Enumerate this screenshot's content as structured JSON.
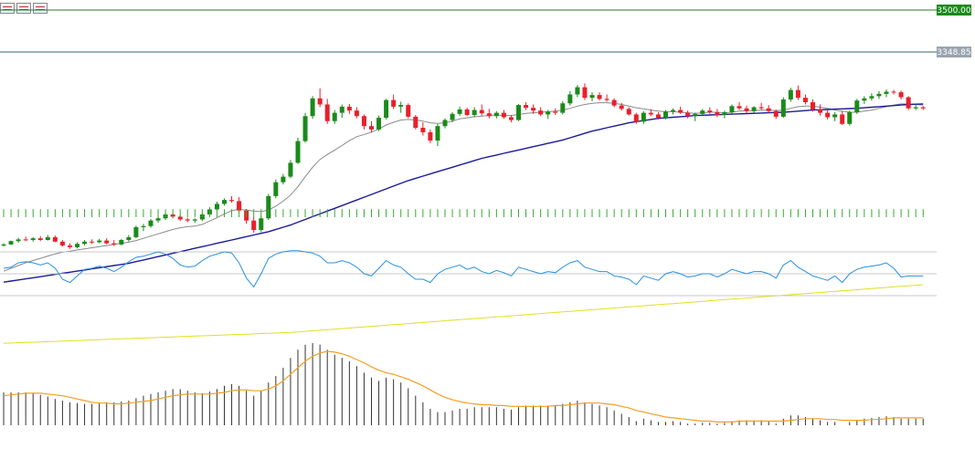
{
  "toolbar": {
    "icons": [
      "chart-window-icon",
      "chart-window-icon",
      "chart-window-icon"
    ]
  },
  "chart_data": {
    "type": "candlestick",
    "price_labels": {
      "top": "3500.00",
      "current": "3348.85"
    },
    "levels": {
      "top": 3500.0,
      "current": 3348.85
    },
    "colors": {
      "up": "#1a8a1a",
      "down": "#e8202a",
      "sma_short": "#8a8a8a",
      "sma_mid": "#1a1a9a",
      "sma_long": "#e0e020",
      "volume": "#33aa33",
      "rsi": "#2a90e0",
      "macd_hist": "#333333",
      "macd_signal": "#f0a020",
      "level_line": "#2a7a2a",
      "current_line": "#3a6a6a"
    },
    "candles": [
      [
        2652,
        2660,
        2648,
        2656
      ],
      [
        2656,
        2670,
        2654,
        2668
      ],
      [
        2668,
        2680,
        2662,
        2674
      ],
      [
        2674,
        2684,
        2668,
        2672
      ],
      [
        2672,
        2682,
        2666,
        2678
      ],
      [
        2678,
        2686,
        2668,
        2672
      ],
      [
        2672,
        2690,
        2670,
        2682
      ],
      [
        2682,
        2688,
        2664,
        2666
      ],
      [
        2666,
        2672,
        2648,
        2652
      ],
      [
        2652,
        2660,
        2640,
        2646
      ],
      [
        2646,
        2664,
        2642,
        2658
      ],
      [
        2658,
        2672,
        2652,
        2666
      ],
      [
        2666,
        2674,
        2658,
        2664
      ],
      [
        2664,
        2676,
        2660,
        2670
      ],
      [
        2670,
        2678,
        2656,
        2660
      ],
      [
        2660,
        2672,
        2650,
        2656
      ],
      [
        2656,
        2676,
        2652,
        2672
      ],
      [
        2672,
        2690,
        2666,
        2682
      ],
      [
        2682,
        2724,
        2678,
        2718
      ],
      [
        2718,
        2730,
        2704,
        2722
      ],
      [
        2722,
        2748,
        2716,
        2742
      ],
      [
        2742,
        2756,
        2734,
        2750
      ],
      [
        2750,
        2772,
        2744,
        2764
      ],
      [
        2764,
        2770,
        2750,
        2756
      ],
      [
        2756,
        2764,
        2740,
        2746
      ],
      [
        2746,
        2752,
        2736,
        2742
      ],
      [
        2742,
        2750,
        2734,
        2746
      ],
      [
        2746,
        2770,
        2740,
        2764
      ],
      [
        2764,
        2790,
        2758,
        2782
      ],
      [
        2782,
        2810,
        2776,
        2802
      ],
      [
        2802,
        2822,
        2796,
        2816
      ],
      [
        2816,
        2830,
        2806,
        2812
      ],
      [
        2812,
        2826,
        2772,
        2778
      ],
      [
        2778,
        2784,
        2730,
        2742
      ],
      [
        2742,
        2756,
        2698,
        2708
      ],
      [
        2708,
        2760,
        2700,
        2750
      ],
      [
        2750,
        2838,
        2744,
        2830
      ],
      [
        2830,
        2890,
        2822,
        2880
      ],
      [
        2880,
        2910,
        2872,
        2900
      ],
      [
        2900,
        2960,
        2894,
        2950
      ],
      [
        2950,
        3040,
        2946,
        3028
      ],
      [
        3028,
        3130,
        3022,
        3118
      ],
      [
        3118,
        3190,
        3108,
        3182
      ],
      [
        3182,
        3218,
        3150,
        3160
      ],
      [
        3160,
        3180,
        3090,
        3100
      ],
      [
        3100,
        3140,
        3090,
        3130
      ],
      [
        3130,
        3160,
        3112,
        3152
      ],
      [
        3152,
        3162,
        3126,
        3138
      ],
      [
        3138,
        3150,
        3110,
        3118
      ],
      [
        3118,
        3124,
        3070,
        3082
      ],
      [
        3082,
        3100,
        3060,
        3070
      ],
      [
        3070,
        3120,
        3064,
        3112
      ],
      [
        3112,
        3180,
        3106,
        3176
      ],
      [
        3176,
        3196,
        3144,
        3152
      ],
      [
        3152,
        3170,
        3130,
        3158
      ],
      [
        3158,
        3164,
        3110,
        3116
      ],
      [
        3116,
        3122,
        3070,
        3076
      ],
      [
        3076,
        3096,
        3048,
        3060
      ],
      [
        3060,
        3070,
        3020,
        3030
      ],
      [
        3030,
        3090,
        3010,
        3082
      ],
      [
        3082,
        3110,
        3074,
        3104
      ],
      [
        3104,
        3132,
        3096,
        3126
      ],
      [
        3126,
        3152,
        3118,
        3142
      ],
      [
        3142,
        3148,
        3118,
        3122
      ],
      [
        3122,
        3150,
        3114,
        3140
      ],
      [
        3140,
        3160,
        3120,
        3128
      ],
      [
        3128,
        3144,
        3110,
        3118
      ],
      [
        3118,
        3136,
        3110,
        3130
      ],
      [
        3130,
        3140,
        3108,
        3114
      ],
      [
        3114,
        3122,
        3096,
        3104
      ],
      [
        3104,
        3162,
        3100,
        3158
      ],
      [
        3158,
        3168,
        3140,
        3148
      ],
      [
        3148,
        3160,
        3126,
        3138
      ],
      [
        3138,
        3150,
        3118,
        3124
      ],
      [
        3124,
        3140,
        3108,
        3134
      ],
      [
        3134,
        3146,
        3122,
        3130
      ],
      [
        3130,
        3172,
        3124,
        3164
      ],
      [
        3164,
        3208,
        3156,
        3196
      ],
      [
        3196,
        3230,
        3186,
        3222
      ],
      [
        3222,
        3236,
        3176,
        3184
      ],
      [
        3184,
        3204,
        3172,
        3194
      ],
      [
        3194,
        3204,
        3174,
        3180
      ],
      [
        3180,
        3196,
        3170,
        3176
      ],
      [
        3176,
        3182,
        3150,
        3156
      ],
      [
        3156,
        3166,
        3138,
        3144
      ],
      [
        3144,
        3150,
        3120,
        3124
      ],
      [
        3124,
        3130,
        3090,
        3098
      ],
      [
        3098,
        3136,
        3090,
        3130
      ],
      [
        3130,
        3142,
        3118,
        3124
      ],
      [
        3124,
        3132,
        3106,
        3112
      ],
      [
        3112,
        3140,
        3106,
        3134
      ],
      [
        3134,
        3146,
        3124,
        3140
      ],
      [
        3140,
        3152,
        3126,
        3130
      ],
      [
        3130,
        3138,
        3110,
        3118
      ],
      [
        3118,
        3130,
        3100,
        3126
      ],
      [
        3126,
        3144,
        3120,
        3138
      ],
      [
        3138,
        3150,
        3126,
        3132
      ],
      [
        3132,
        3144,
        3114,
        3122
      ],
      [
        3122,
        3138,
        3110,
        3132
      ],
      [
        3132,
        3160,
        3126,
        3154
      ],
      [
        3154,
        3168,
        3140,
        3146
      ],
      [
        3146,
        3156,
        3128,
        3136
      ],
      [
        3136,
        3154,
        3130,
        3150
      ],
      [
        3150,
        3166,
        3140,
        3146
      ],
      [
        3146,
        3158,
        3130,
        3136
      ],
      [
        3136,
        3142,
        3108,
        3116
      ],
      [
        3116,
        3186,
        3112,
        3178
      ],
      [
        3178,
        3220,
        3170,
        3212
      ],
      [
        3212,
        3228,
        3176,
        3184
      ],
      [
        3184,
        3196,
        3160,
        3168
      ],
      [
        3168,
        3178,
        3134,
        3142
      ],
      [
        3142,
        3160,
        3120,
        3130
      ],
      [
        3130,
        3140,
        3106,
        3114
      ],
      [
        3114,
        3132,
        3100,
        3124
      ],
      [
        3124,
        3136,
        3086,
        3090
      ],
      [
        3090,
        3138,
        3084,
        3132
      ],
      [
        3132,
        3180,
        3126,
        3174
      ],
      [
        3174,
        3190,
        3162,
        3182
      ],
      [
        3182,
        3200,
        3174,
        3190
      ],
      [
        3190,
        3208,
        3180,
        3198
      ],
      [
        3198,
        3214,
        3186,
        3206
      ],
      [
        3206,
        3212,
        3196,
        3204
      ],
      [
        3204,
        3210,
        3178,
        3186
      ],
      [
        3186,
        3190,
        3140,
        3146
      ],
      [
        3146,
        3160,
        3140,
        3150
      ],
      [
        3150,
        3154,
        3140,
        3146
      ]
    ],
    "sma_short": [
      2560,
      2570,
      2580,
      2590,
      2598,
      2606,
      2614,
      2622,
      2628,
      2632,
      2636,
      2640,
      2644,
      2648,
      2652,
      2656,
      2660,
      2664,
      2670,
      2678,
      2686,
      2694,
      2702,
      2710,
      2716,
      2720,
      2722,
      2728,
      2740,
      2752,
      2766,
      2778,
      2782,
      2780,
      2776,
      2774,
      2780,
      2794,
      2812,
      2834,
      2864,
      2900,
      2934,
      2962,
      2980,
      2996,
      3012,
      3030,
      3044,
      3052,
      3060,
      3072,
      3086,
      3096,
      3104,
      3106,
      3104,
      3100,
      3094,
      3092,
      3094,
      3100,
      3108,
      3112,
      3116,
      3118,
      3120,
      3122,
      3120,
      3120,
      3124,
      3128,
      3130,
      3132,
      3134,
      3136,
      3140,
      3146,
      3154,
      3160,
      3164,
      3166,
      3166,
      3164,
      3160,
      3154,
      3148,
      3144,
      3140,
      3136,
      3134,
      3134,
      3132,
      3130,
      3128,
      3130,
      3132,
      3132,
      3130,
      3132,
      3136,
      3138,
      3138,
      3140,
      3140,
      3138,
      3140,
      3146,
      3152,
      3154,
      3154,
      3150,
      3146,
      3140,
      3136,
      3132,
      3132,
      3136,
      3140,
      3146,
      3152,
      3158,
      3162,
      3162,
      3160,
      3158
    ],
    "sma_mid": [
      2520,
      2524,
      2528,
      2532,
      2536,
      2540,
      2544,
      2548,
      2552,
      2556,
      2560,
      2564,
      2568,
      2572,
      2576,
      2580,
      2584,
      2588,
      2594,
      2600,
      2606,
      2612,
      2618,
      2624,
      2630,
      2636,
      2642,
      2648,
      2654,
      2660,
      2666,
      2672,
      2678,
      2684,
      2690,
      2696,
      2702,
      2710,
      2718,
      2726,
      2736,
      2746,
      2756,
      2766,
      2776,
      2786,
      2796,
      2806,
      2816,
      2826,
      2836,
      2846,
      2856,
      2866,
      2876,
      2886,
      2894,
      2902,
      2910,
      2918,
      2926,
      2934,
      2942,
      2950,
      2958,
      2966,
      2972,
      2978,
      2984,
      2990,
      2996,
      3002,
      3008,
      3014,
      3020,
      3026,
      3032,
      3040,
      3048,
      3056,
      3064,
      3070,
      3076,
      3082,
      3088,
      3094,
      3098,
      3102,
      3106,
      3110,
      3112,
      3114,
      3116,
      3118,
      3120,
      3121,
      3122,
      3123,
      3124,
      3125,
      3126,
      3127,
      3128,
      3129,
      3130,
      3131,
      3132,
      3134,
      3136,
      3138,
      3140,
      3141,
      3142,
      3143,
      3144,
      3145,
      3146,
      3148,
      3150,
      3152,
      3154,
      3156,
      3158,
      3160,
      3161,
      3162
    ],
    "sma_long": [
      2300,
      2301,
      2302,
      2303,
      2304,
      2305,
      2306,
      2307,
      2308,
      2309,
      2310,
      2311,
      2312,
      2313,
      2314,
      2315,
      2316,
      2317,
      2318,
      2319,
      2320,
      2321,
      2322,
      2323,
      2324,
      2325,
      2326,
      2327,
      2328,
      2329,
      2330,
      2331,
      2332,
      2333,
      2334,
      2335,
      2336,
      2337,
      2338,
      2339,
      2341,
      2343,
      2345,
      2347,
      2349,
      2351,
      2353,
      2355,
      2357,
      2359,
      2361,
      2363,
      2365,
      2367,
      2369,
      2371,
      2373,
      2375,
      2377,
      2379,
      2381,
      2383,
      2385,
      2387,
      2389,
      2391,
      2393,
      2395,
      2397,
      2399,
      2401,
      2403,
      2405,
      2407,
      2409,
      2411,
      2413,
      2415,
      2417,
      2419,
      2421,
      2423,
      2425,
      2427,
      2429,
      2431,
      2433,
      2435,
      2437,
      2439,
      2441,
      2443,
      2445,
      2447,
      2449,
      2451,
      2453,
      2455,
      2457,
      2459,
      2461,
      2463,
      2465,
      2467,
      2469,
      2471,
      2473,
      2475,
      2477,
      2479,
      2481,
      2483,
      2485,
      2487,
      2489,
      2491,
      2493,
      2495,
      2497,
      2499,
      2501,
      2503,
      2505,
      2507,
      2509,
      2511
    ],
    "volume": [
      40,
      40,
      40,
      40,
      40,
      40,
      40,
      40,
      40,
      40,
      40,
      40,
      40,
      40,
      40,
      40,
      40,
      40,
      40,
      40,
      40,
      40,
      40,
      40,
      40,
      40,
      40,
      40,
      40,
      40,
      40,
      40,
      40,
      40,
      40,
      40,
      40,
      40,
      40,
      40,
      40,
      40,
      40,
      40,
      40,
      40,
      40,
      40,
      40,
      40,
      40,
      40,
      40,
      40,
      40,
      40,
      40,
      40,
      40,
      40,
      40,
      40,
      40,
      40,
      40,
      40,
      40,
      40,
      40,
      40,
      40,
      40,
      40,
      40,
      40,
      40,
      40,
      40,
      40,
      40,
      40,
      40,
      40,
      40,
      40,
      40,
      40,
      40,
      40,
      40,
      40,
      40,
      40,
      40,
      40,
      40,
      40,
      40,
      40,
      40,
      40,
      40,
      40,
      40,
      40,
      40,
      40,
      40,
      40,
      40,
      40,
      40,
      40,
      40,
      40,
      40,
      40,
      40,
      40,
      40,
      40,
      40,
      40,
      40,
      40,
      40
    ],
    "rsi": [
      55,
      56,
      60,
      61,
      60,
      58,
      60,
      55,
      45,
      42,
      48,
      54,
      55,
      57,
      55,
      52,
      56,
      61,
      65,
      66,
      68,
      70,
      68,
      64,
      58,
      56,
      57,
      62,
      66,
      68,
      70,
      69,
      60,
      46,
      38,
      50,
      64,
      68,
      70,
      71,
      71,
      70,
      69,
      66,
      60,
      60,
      62,
      60,
      56,
      50,
      48,
      55,
      62,
      58,
      56,
      50,
      45,
      45,
      42,
      50,
      54,
      56,
      58,
      54,
      56,
      52,
      50,
      53,
      51,
      48,
      56,
      54,
      52,
      50,
      52,
      51,
      56,
      60,
      62,
      56,
      54,
      52,
      52,
      48,
      47,
      45,
      40,
      48,
      46,
      44,
      50,
      52,
      50,
      47,
      48,
      50,
      50,
      47,
      50,
      54,
      52,
      50,
      52,
      52,
      50,
      46,
      58,
      62,
      56,
      52,
      48,
      46,
      44,
      48,
      42,
      50,
      54,
      56,
      57,
      58,
      60,
      55,
      47,
      48,
      48,
      48
    ],
    "macd_hist": [
      40,
      40,
      40,
      40,
      39,
      37,
      35,
      32,
      30,
      28,
      27,
      26,
      26,
      27,
      28,
      28,
      29,
      30,
      33,
      36,
      38,
      40,
      42,
      44,
      44,
      42,
      40,
      39,
      41,
      44,
      48,
      50,
      48,
      42,
      36,
      42,
      52,
      60,
      70,
      82,
      92,
      98,
      100,
      98,
      92,
      86,
      82,
      78,
      72,
      64,
      58,
      54,
      58,
      56,
      52,
      45,
      36,
      28,
      20,
      16,
      16,
      18,
      20,
      20,
      22,
      22,
      22,
      22,
      20,
      19,
      22,
      24,
      24,
      24,
      24,
      24,
      26,
      28,
      30,
      28,
      26,
      24,
      22,
      18,
      14,
      10,
      5,
      8,
      6,
      4,
      4,
      5,
      4,
      2,
      2,
      3,
      3,
      2,
      3,
      5,
      6,
      6,
      6,
      6,
      5,
      2,
      8,
      12,
      12,
      10,
      8,
      6,
      4,
      4,
      0,
      4,
      6,
      8,
      9,
      10,
      11,
      10,
      8,
      8,
      8,
      8
    ],
    "macd_signal": [
      36,
      37,
      38,
      39,
      39,
      39,
      38,
      37,
      36,
      34,
      32,
      30,
      28,
      27,
      27,
      26,
      26,
      27,
      28,
      29,
      30,
      32,
      34,
      36,
      37,
      38,
      38,
      38,
      38,
      39,
      40,
      42,
      43,
      43,
      42,
      42,
      44,
      48,
      54,
      62,
      70,
      78,
      84,
      88,
      90,
      89,
      87,
      84,
      80,
      76,
      71,
      67,
      64,
      62,
      59,
      56,
      52,
      48,
      43,
      38,
      34,
      31,
      29,
      27,
      26,
      25,
      25,
      24,
      24,
      23,
      23,
      23,
      23,
      23,
      23,
      24,
      24,
      25,
      26,
      27,
      27,
      27,
      26,
      25,
      23,
      21,
      18,
      16,
      14,
      12,
      10,
      9,
      8,
      7,
      6,
      5,
      5,
      4,
      4,
      4,
      5,
      5,
      5,
      5,
      5,
      5,
      5,
      6,
      7,
      8,
      8,
      8,
      7,
      7,
      6,
      6,
      6,
      6,
      7,
      7,
      8,
      9,
      9,
      9,
      9,
      9
    ]
  }
}
